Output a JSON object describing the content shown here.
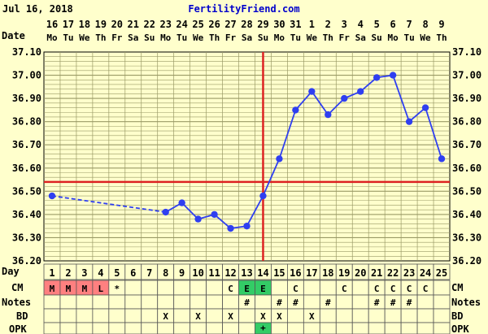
{
  "header": {
    "date_text": "Jul 16, 2018",
    "site": "FertilityFriend.com",
    "date_row_label": "Date"
  },
  "colors": {
    "page_bg": "#ffffcc",
    "plot_bg": "#ffffcc",
    "grid": "#999966",
    "series": "#2f3ff0",
    "coverline": "#dd2222",
    "ovulation": "#dd2222",
    "cm_menses": "#ff8080",
    "cm_egg": "#33cc66",
    "opk_pos": "#33cc66",
    "row_bg": "#ffffcc",
    "site": "#0000cc"
  },
  "rows": {
    "day_label": "Day",
    "cm_label": "CM",
    "notes_label": "Notes",
    "bd_label": "BD",
    "opk_label": "OPK"
  },
  "chart_data": {
    "type": "line",
    "title": "",
    "xlabel": "",
    "ylabel": "",
    "ylim": [
      36.2,
      37.1
    ],
    "y_ticks": [
      "37.10",
      "37.00",
      "36.90",
      "36.80",
      "36.70",
      "36.60",
      "36.50",
      "36.40",
      "36.30",
      "36.20"
    ],
    "dates": [
      "16",
      "17",
      "18",
      "19",
      "20",
      "21",
      "22",
      "23",
      "24",
      "25",
      "26",
      "27",
      "28",
      "29",
      "30",
      "31",
      "1",
      "2",
      "3",
      "4",
      "5",
      "6",
      "7",
      "8",
      "9"
    ],
    "weekdays": [
      "Mo",
      "Tu",
      "We",
      "Th",
      "Fr",
      "Sa",
      "Su",
      "Mo",
      "Tu",
      "We",
      "Th",
      "Fr",
      "Sa",
      "Su",
      "Mo",
      "Tu",
      "We",
      "Th",
      "Fr",
      "Sa",
      "Su",
      "Mo",
      "Tu",
      "We",
      "Th"
    ],
    "days": [
      1,
      2,
      3,
      4,
      5,
      6,
      7,
      8,
      9,
      10,
      11,
      12,
      13,
      14,
      15,
      16,
      17,
      18,
      19,
      20,
      21,
      22,
      23,
      24,
      25
    ],
    "temps": [
      36.48,
      null,
      null,
      null,
      null,
      null,
      null,
      36.41,
      36.45,
      36.38,
      36.4,
      36.34,
      36.35,
      36.48,
      36.64,
      36.85,
      36.93,
      36.83,
      36.9,
      36.93,
      36.99,
      37.0,
      36.8,
      36.86,
      36.64
    ],
    "coverline": 36.54,
    "ovulation_day": 14,
    "cm": [
      "M",
      "M",
      "M",
      "L",
      "*",
      "",
      "",
      "",
      "",
      "",
      "",
      "C",
      "E",
      "E",
      "",
      "C",
      "",
      "",
      "C",
      "",
      "C",
      "C",
      "C",
      "C",
      ""
    ],
    "notes": [
      "",
      "",
      "",
      "",
      "",
      "",
      "",
      "",
      "",
      "",
      "",
      "",
      "#",
      "",
      "#",
      "#",
      "",
      "#",
      "",
      "",
      "#",
      "#",
      "#",
      "",
      ""
    ],
    "bd": [
      "",
      "",
      "",
      "",
      "",
      "",
      "",
      "X",
      "",
      "X",
      "",
      "X",
      "",
      "X",
      "X",
      "",
      "X",
      "",
      "",
      "",
      "",
      "",
      "",
      "",
      ""
    ],
    "opk": [
      "",
      "",
      "",
      "",
      "",
      "",
      "",
      "",
      "",
      "",
      "",
      "",
      "",
      "+",
      "",
      "",
      "",
      "",
      "",
      "",
      "",
      "",
      "",
      "",
      ""
    ]
  }
}
